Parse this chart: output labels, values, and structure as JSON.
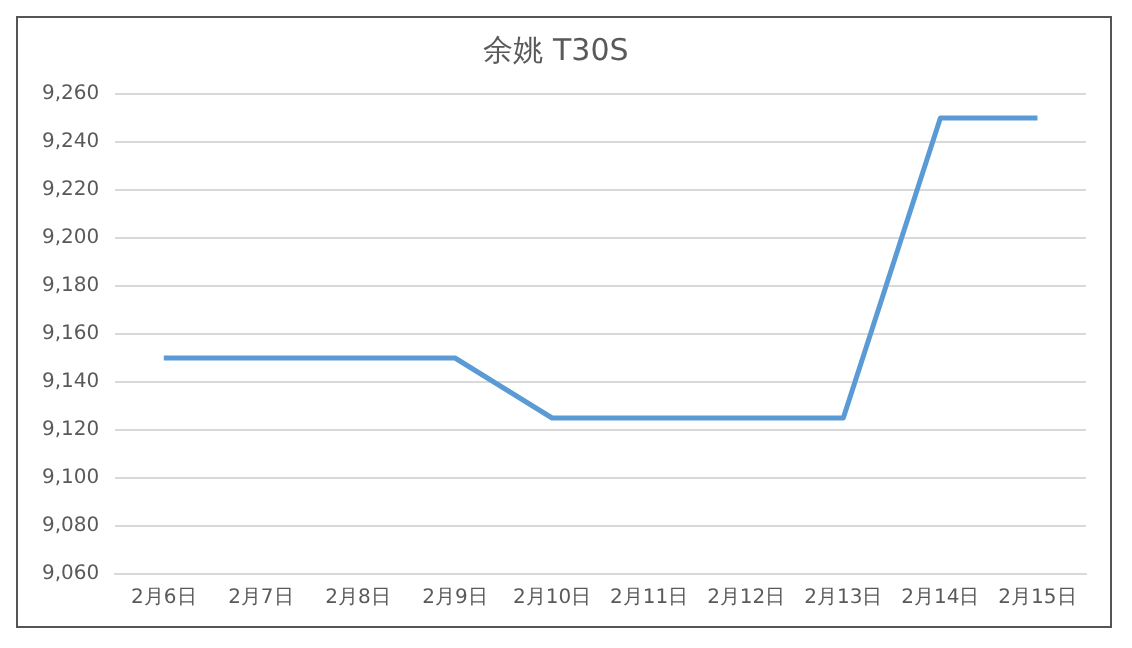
{
  "chart_data": {
    "type": "line",
    "title": "余姚 T30S",
    "categories": [
      "2月6日",
      "2月7日",
      "2月8日",
      "2月9日",
      "2月10日",
      "2月11日",
      "2月12日",
      "2月13日",
      "2月14日",
      "2月15日"
    ],
    "series": [
      {
        "color": "#5b9bd5",
        "values": [
          9150,
          9150,
          9150,
          9150,
          9125,
          9125,
          9125,
          9125,
          9250,
          9250
        ]
      }
    ],
    "ylim": [
      9060,
      9260
    ],
    "yticks": [
      {
        "value": 9060,
        "label": "9,060"
      },
      {
        "value": 9080,
        "label": "9,080"
      },
      {
        "value": 9100,
        "label": "9,100"
      },
      {
        "value": 9120,
        "label": "9,120"
      },
      {
        "value": 9140,
        "label": "9,140"
      },
      {
        "value": 9160,
        "label": "9,160"
      },
      {
        "value": 9180,
        "label": "9,180"
      },
      {
        "value": 9200,
        "label": "9,200"
      },
      {
        "value": 9220,
        "label": "9,220"
      },
      {
        "value": 9240,
        "label": "9,240"
      },
      {
        "value": 9260,
        "label": "9,260"
      }
    ],
    "grid": "y",
    "legend": false,
    "marker": "none",
    "line_style": "solid"
  }
}
